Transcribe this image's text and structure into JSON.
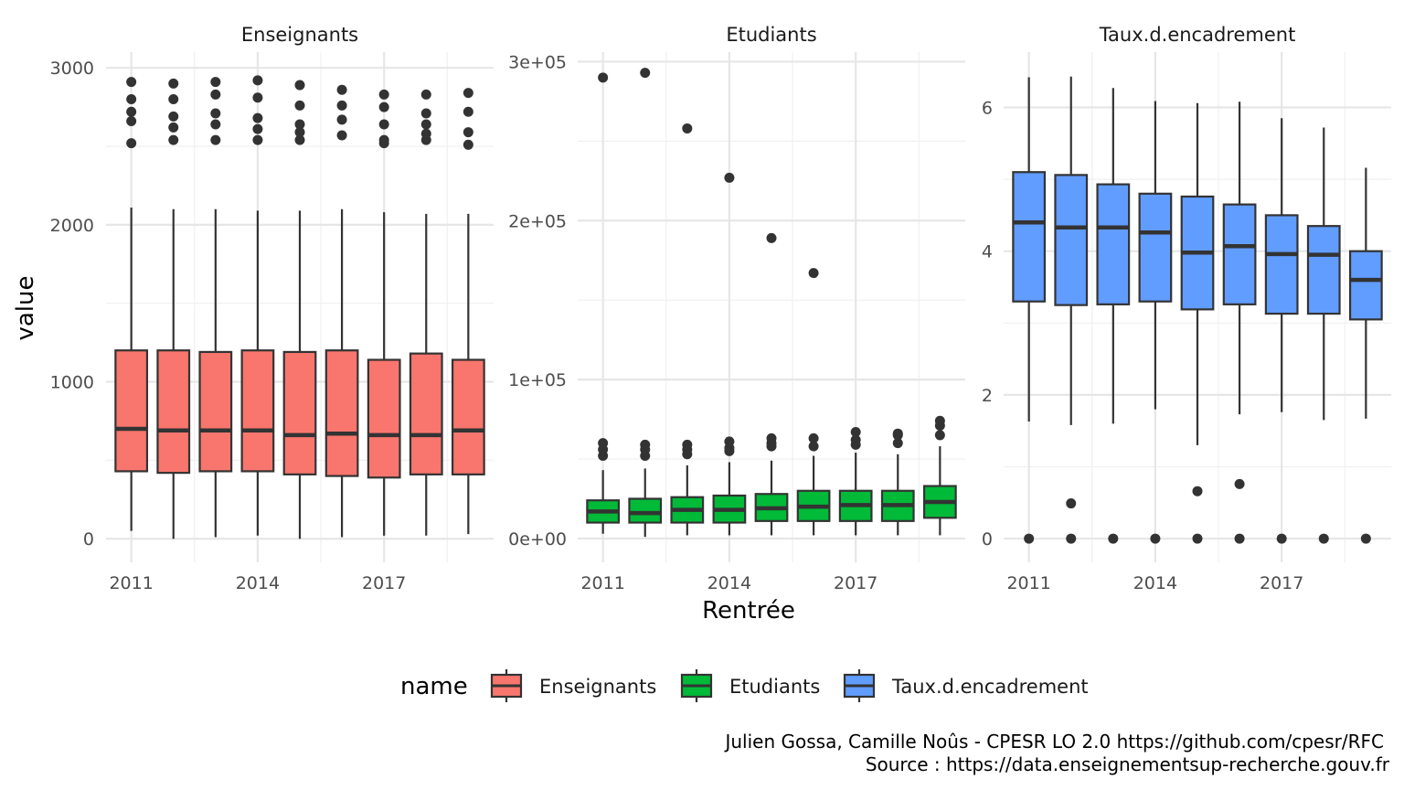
{
  "chart_data": {
    "type": "boxplot",
    "xlabel": "Rentrée",
    "ylabel": "value",
    "x_ticks": [
      "2011",
      "2014",
      "2017"
    ],
    "years": [
      2011,
      2012,
      2013,
      2014,
      2015,
      2016,
      2017,
      2018,
      2019
    ],
    "grid": true,
    "legend": {
      "title": "name",
      "position": "bottom",
      "items": [
        {
          "label": "Enseignants",
          "color": "#F8766D"
        },
        {
          "label": "Etudiants",
          "color": "#00BA38"
        },
        {
          "label": "Taux.d.encadrement",
          "color": "#619CFF"
        }
      ]
    },
    "caption": [
      "Julien Gossa, Camille Noûs - CPESR LO 2.0 https://github.com/cpesr/RFC",
      "Source : https://data.enseignementsup-recherche.gouv.fr"
    ],
    "panels": [
      {
        "title": "Enseignants",
        "color": "#F8766D",
        "ylim": [
          -150,
          3100
        ],
        "y_ticks": [
          0,
          1000,
          2000,
          3000
        ],
        "y_tick_labels": [
          "0",
          "1000",
          "2000",
          "3000"
        ],
        "boxes": [
          {
            "year": 2011,
            "lower": 50,
            "q1": 430,
            "median": 700,
            "q3": 1200,
            "upper": 2110,
            "outliers": [
              2520,
              2660,
              2720,
              2800,
              2910
            ]
          },
          {
            "year": 2012,
            "lower": 0,
            "q1": 420,
            "median": 690,
            "q3": 1200,
            "upper": 2100,
            "outliers": [
              2540,
              2620,
              2690,
              2800,
              2900
            ]
          },
          {
            "year": 2013,
            "lower": 10,
            "q1": 430,
            "median": 690,
            "q3": 1190,
            "upper": 2100,
            "outliers": [
              2540,
              2640,
              2710,
              2830,
              2910
            ]
          },
          {
            "year": 2014,
            "lower": 20,
            "q1": 430,
            "median": 690,
            "q3": 1200,
            "upper": 2090,
            "outliers": [
              2540,
              2610,
              2680,
              2810,
              2920
            ]
          },
          {
            "year": 2015,
            "lower": 0,
            "q1": 410,
            "median": 660,
            "q3": 1190,
            "upper": 2090,
            "outliers": [
              2540,
              2590,
              2640,
              2760,
              2890
            ]
          },
          {
            "year": 2016,
            "lower": 10,
            "q1": 400,
            "median": 670,
            "q3": 1200,
            "upper": 2100,
            "outliers": [
              2570,
              2670,
              2760,
              2860
            ]
          },
          {
            "year": 2017,
            "lower": 20,
            "q1": 390,
            "median": 660,
            "q3": 1140,
            "upper": 2080,
            "outliers": [
              2520,
              2540,
              2640,
              2750,
              2830
            ]
          },
          {
            "year": 2018,
            "lower": 20,
            "q1": 410,
            "median": 660,
            "q3": 1180,
            "upper": 2070,
            "outliers": [
              2540,
              2580,
              2640,
              2710,
              2830
            ]
          },
          {
            "year": 2019,
            "lower": 30,
            "q1": 410,
            "median": 690,
            "q3": 1140,
            "upper": 2070,
            "outliers": [
              2510,
              2590,
              2720,
              2840
            ]
          }
        ]
      },
      {
        "title": "Etudiants",
        "color": "#00BA38",
        "ylim": [
          -15000,
          306000
        ],
        "y_ticks": [
          0,
          100000,
          200000,
          300000
        ],
        "y_tick_labels": [
          "0e+00",
          "1e+05",
          "2e+05",
          "3e+05"
        ],
        "boxes": [
          {
            "year": 2011,
            "lower": 3000,
            "q1": 10000,
            "median": 17000,
            "q3": 24000,
            "upper": 43000,
            "outliers": [
              52000,
              56000,
              60000,
              290000
            ]
          },
          {
            "year": 2012,
            "lower": 1000,
            "q1": 10000,
            "median": 16000,
            "q3": 25000,
            "upper": 44000,
            "outliers": [
              52000,
              56000,
              59000,
              293000
            ]
          },
          {
            "year": 2013,
            "lower": 2000,
            "q1": 10000,
            "median": 18000,
            "q3": 26000,
            "upper": 46000,
            "outliers": [
              53000,
              56000,
              59000,
              258000
            ]
          },
          {
            "year": 2014,
            "lower": 2000,
            "q1": 10000,
            "median": 18000,
            "q3": 27000,
            "upper": 48000,
            "outliers": [
              55000,
              57000,
              61000,
              227000
            ]
          },
          {
            "year": 2015,
            "lower": 2000,
            "q1": 11000,
            "median": 19000,
            "q3": 28000,
            "upper": 49000,
            "outliers": [
              58000,
              60000,
              63000,
              189000
            ]
          },
          {
            "year": 2016,
            "lower": 2000,
            "q1": 11000,
            "median": 20000,
            "q3": 30000,
            "upper": 52000,
            "outliers": [
              58000,
              63000,
              167000
            ]
          },
          {
            "year": 2017,
            "lower": 2000,
            "q1": 11000,
            "median": 21000,
            "q3": 30000,
            "upper": 54000,
            "outliers": [
              59000,
              62000,
              67000
            ]
          },
          {
            "year": 2018,
            "lower": 2000,
            "q1": 11000,
            "median": 21000,
            "q3": 30000,
            "upper": 53000,
            "outliers": [
              60000,
              65000,
              66000
            ]
          },
          {
            "year": 2019,
            "lower": 2000,
            "q1": 13000,
            "median": 23000,
            "q3": 33000,
            "upper": 58000,
            "outliers": [
              65000,
              71000,
              74000
            ]
          }
        ]
      },
      {
        "title": "Taux.d.encadrement",
        "color": "#619CFF",
        "ylim": [
          -0.33,
          6.77
        ],
        "y_ticks": [
          0,
          2,
          4,
          6
        ],
        "y_tick_labels": [
          "0",
          "2",
          "4",
          "6"
        ],
        "boxes": [
          {
            "year": 2011,
            "lower": 1.63,
            "q1": 3.3,
            "median": 4.4,
            "q3": 5.1,
            "upper": 6.42,
            "outliers": [
              0
            ]
          },
          {
            "year": 2012,
            "lower": 1.58,
            "q1": 3.25,
            "median": 4.33,
            "q3": 5.06,
            "upper": 6.43,
            "outliers": [
              0,
              0.49
            ]
          },
          {
            "year": 2013,
            "lower": 1.6,
            "q1": 3.26,
            "median": 4.33,
            "q3": 4.93,
            "upper": 6.27,
            "outliers": [
              0
            ]
          },
          {
            "year": 2014,
            "lower": 1.8,
            "q1": 3.3,
            "median": 4.26,
            "q3": 4.8,
            "upper": 6.09,
            "outliers": [
              0
            ]
          },
          {
            "year": 2015,
            "lower": 1.3,
            "q1": 3.19,
            "median": 3.98,
            "q3": 4.76,
            "upper": 6.06,
            "outliers": [
              0,
              0.66
            ]
          },
          {
            "year": 2016,
            "lower": 1.73,
            "q1": 3.26,
            "median": 4.07,
            "q3": 4.65,
            "upper": 6.08,
            "outliers": [
              0,
              0.76
            ]
          },
          {
            "year": 2017,
            "lower": 1.76,
            "q1": 3.13,
            "median": 3.96,
            "q3": 4.5,
            "upper": 5.85,
            "outliers": [
              0
            ]
          },
          {
            "year": 2018,
            "lower": 1.65,
            "q1": 3.13,
            "median": 3.95,
            "q3": 4.35,
            "upper": 5.72,
            "outliers": [
              0
            ]
          },
          {
            "year": 2019,
            "lower": 1.67,
            "q1": 3.05,
            "median": 3.6,
            "q3": 4.0,
            "upper": 5.16,
            "outliers": [
              0
            ]
          }
        ]
      }
    ]
  }
}
